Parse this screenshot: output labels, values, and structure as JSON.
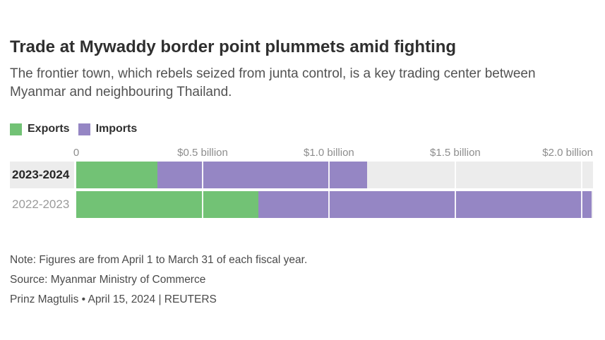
{
  "header": {
    "title": "Trade at Mywaddy border point plummets amid fighting",
    "subtitle": "The frontier town, which rebels seized from junta control, is a key trading center between Myanmar and neighbouring Thailand."
  },
  "chart_data": {
    "type": "bar",
    "orientation": "horizontal",
    "stacked": true,
    "grid": true,
    "legend_position": "top-left",
    "categories": [
      "2023-2024",
      "2022-2023"
    ],
    "series": [
      {
        "name": "Exports",
        "color": "#72c275",
        "values": [
          0.32,
          0.72
        ]
      },
      {
        "name": "Imports",
        "color": "#9586c4",
        "values": [
          0.83,
          1.32
        ]
      }
    ],
    "x_ticks": [
      {
        "value": 0,
        "label": "0"
      },
      {
        "value": 0.5,
        "label": "$0.5 billion"
      },
      {
        "value": 1.0,
        "label": "$1.0 billion"
      },
      {
        "value": 1.5,
        "label": "$1.5 billion"
      },
      {
        "value": 2.0,
        "label": "$2.0 billion"
      }
    ],
    "xlim": [
      0,
      2.045
    ],
    "highlight_index": 0
  },
  "colors": {
    "exports_green": "#72c275",
    "imports_purple": "#9586c4",
    "track_gray": "#efefef",
    "highlight_band": "#ececec",
    "gridline": "#ffffff"
  },
  "footer": {
    "note": "Note: Figures are from April 1 to March 31 of each fiscal year.",
    "source": "Source: Myanmar Ministry of Commerce",
    "byline": "Prinz Magtulis • April 15, 2024 | REUTERS"
  }
}
